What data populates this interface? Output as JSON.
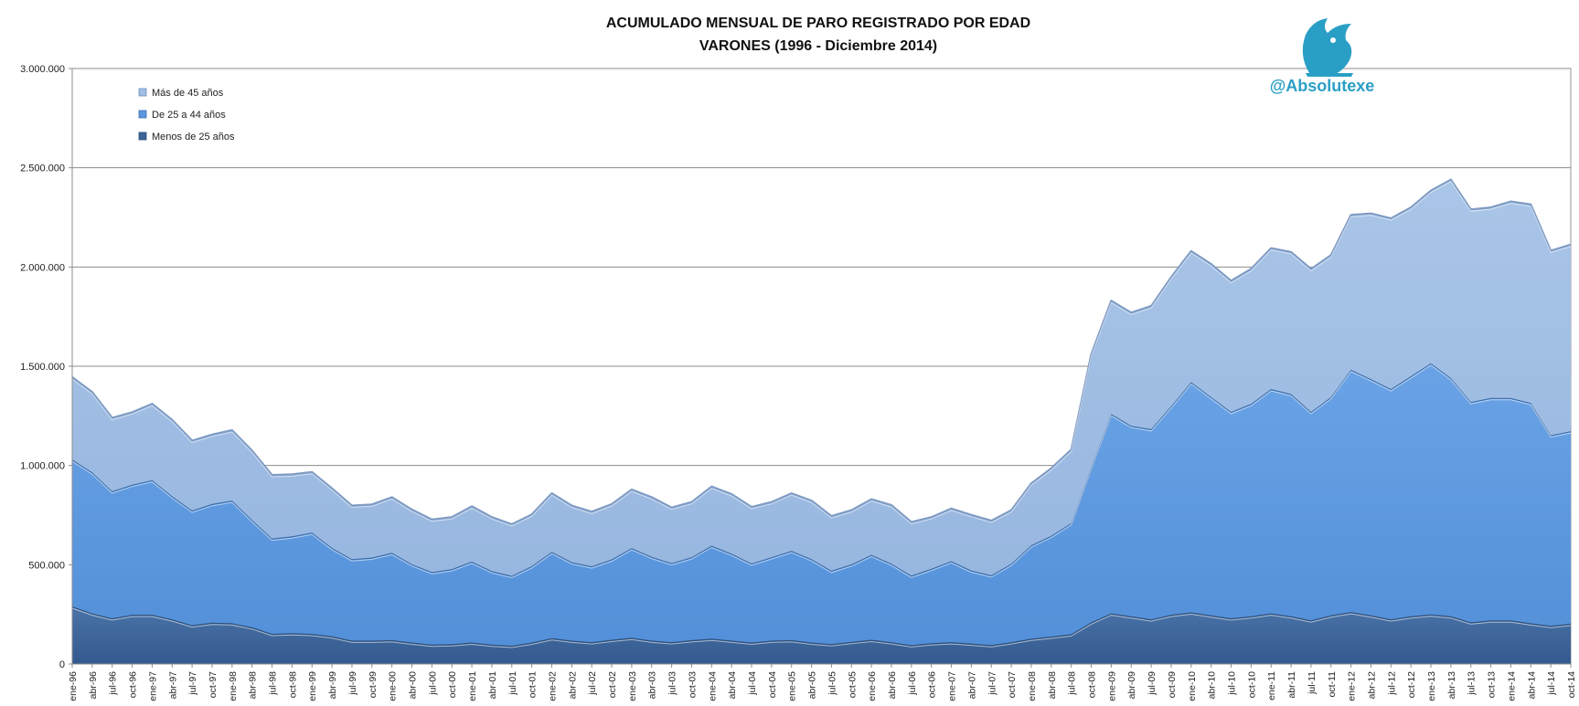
{
  "chart_data": {
    "type": "area",
    "stacked": true,
    "title": "ACUMULADO MENSUAL DE PARO REGISTRADO POR EDAD",
    "subtitle": "VARONES (1996 - Diciembre 2014)",
    "xlabel": "",
    "ylabel": "",
    "ylim": [
      0,
      3000000
    ],
    "yticks": [
      0,
      500000,
      1000000,
      1500000,
      2000000,
      2500000,
      3000000
    ],
    "ytick_labels": [
      "0",
      "500.000",
      "1.000.000",
      "1.500.000",
      "2.000.000",
      "2.500.000",
      "3.000.000"
    ],
    "grid": true,
    "legend_position": "top-left",
    "x_labels": [
      "ene-96",
      "abr-96",
      "jul-96",
      "oct-96",
      "ene-97",
      "abr-97",
      "jul-97",
      "oct-97",
      "ene-98",
      "abr-98",
      "jul-98",
      "oct-98",
      "ene-99",
      "abr-99",
      "jul-99",
      "oct-99",
      "ene-00",
      "abr-00",
      "jul-00",
      "oct-00",
      "ene-01",
      "abr-01",
      "jul-01",
      "oct-01",
      "ene-02",
      "abr-02",
      "jul-02",
      "oct-02",
      "ene-03",
      "abr-03",
      "jul-03",
      "oct-03",
      "ene-04",
      "abr-04",
      "jul-04",
      "oct-04",
      "ene-05",
      "abr-05",
      "jul-05",
      "oct-05",
      "ene-06",
      "abr-06",
      "jul-06",
      "oct-06",
      "ene-07",
      "abr-07",
      "jul-07",
      "oct-07",
      "ene-08",
      "abr-08",
      "jul-08",
      "oct-08",
      "ene-09",
      "abr-09",
      "jul-09",
      "oct-09",
      "ene-10",
      "abr-10",
      "jul-10",
      "oct-10",
      "ene-11",
      "abr-11",
      "jul-11",
      "oct-11",
      "ene-12",
      "abr-12",
      "jul-12",
      "oct-12",
      "ene-13",
      "abr-13",
      "jul-13",
      "oct-13",
      "ene-14",
      "abr-14",
      "jul-14",
      "oct-14"
    ],
    "series": [
      {
        "name": "Menos de 25 años",
        "color": "#3c6499",
        "values": [
          290000,
          255000,
          230000,
          248000,
          248000,
          225000,
          195000,
          208000,
          205000,
          185000,
          152000,
          155000,
          152000,
          140000,
          118000,
          118000,
          120000,
          108000,
          98000,
          100000,
          108000,
          98000,
          92000,
          108000,
          130000,
          118000,
          110000,
          122000,
          132000,
          118000,
          110000,
          120000,
          128000,
          118000,
          108000,
          118000,
          120000,
          108000,
          100000,
          112000,
          122000,
          110000,
          95000,
          105000,
          110000,
          103000,
          95000,
          110000,
          128000,
          138000,
          150000,
          210000,
          255000,
          240000,
          225000,
          248000,
          260000,
          245000,
          230000,
          240000,
          255000,
          240000,
          220000,
          245000,
          262000,
          245000,
          225000,
          240000,
          250000,
          240000,
          210000,
          220000,
          220000,
          205000,
          192000,
          203000
        ]
      },
      {
        "name": "De 25 a 44 años",
        "color": "#5c97de",
        "values": [
          740000,
          710000,
          640000,
          655000,
          678000,
          620000,
          578000,
          598000,
          618000,
          540000,
          480000,
          488000,
          510000,
          445000,
          410000,
          418000,
          440000,
          395000,
          365000,
          378000,
          408000,
          370000,
          352000,
          385000,
          435000,
          395000,
          382000,
          405000,
          452000,
          422000,
          398000,
          418000,
          468000,
          438000,
          398000,
          420000,
          450000,
          420000,
          370000,
          390000,
          428000,
          395000,
          350000,
          375000,
          408000,
          368000,
          352000,
          395000,
          470000,
          508000,
          560000,
          780000,
          1005000,
          960000,
          958000,
          1050000,
          1160000,
          1100000,
          1040000,
          1070000,
          1130000,
          1120000,
          1050000,
          1100000,
          1220000,
          1190000,
          1160000,
          1210000,
          1265000,
          1200000,
          1110000,
          1120000,
          1120000,
          1110000,
          960000,
          970000
        ]
      },
      {
        "name": "Más de 45 años",
        "color": "#a0bee4",
        "values": [
          415000,
          405000,
          370000,
          365000,
          385000,
          385000,
          352000,
          350000,
          355000,
          350000,
          320000,
          312000,
          305000,
          300000,
          270000,
          268000,
          280000,
          275000,
          265000,
          262000,
          278000,
          272000,
          260000,
          260000,
          295000,
          285000,
          275000,
          278000,
          295000,
          300000,
          280000,
          278000,
          298000,
          300000,
          285000,
          278000,
          290000,
          295000,
          275000,
          273000,
          280000,
          295000,
          270000,
          260000,
          265000,
          280000,
          275000,
          270000,
          312000,
          340000,
          370000,
          570000,
          570000,
          570000,
          620000,
          650000,
          660000,
          670000,
          660000,
          680000,
          710000,
          715000,
          720000,
          715000,
          780000,
          835000,
          860000,
          850000,
          870000,
          1000000,
          970000,
          960000,
          990000,
          1000000,
          930000,
          940000
        ]
      }
    ]
  },
  "brand": {
    "handle": "@Absolutexe",
    "logo_icon": "griffin-logo-icon",
    "color": "#2a9fc5"
  }
}
